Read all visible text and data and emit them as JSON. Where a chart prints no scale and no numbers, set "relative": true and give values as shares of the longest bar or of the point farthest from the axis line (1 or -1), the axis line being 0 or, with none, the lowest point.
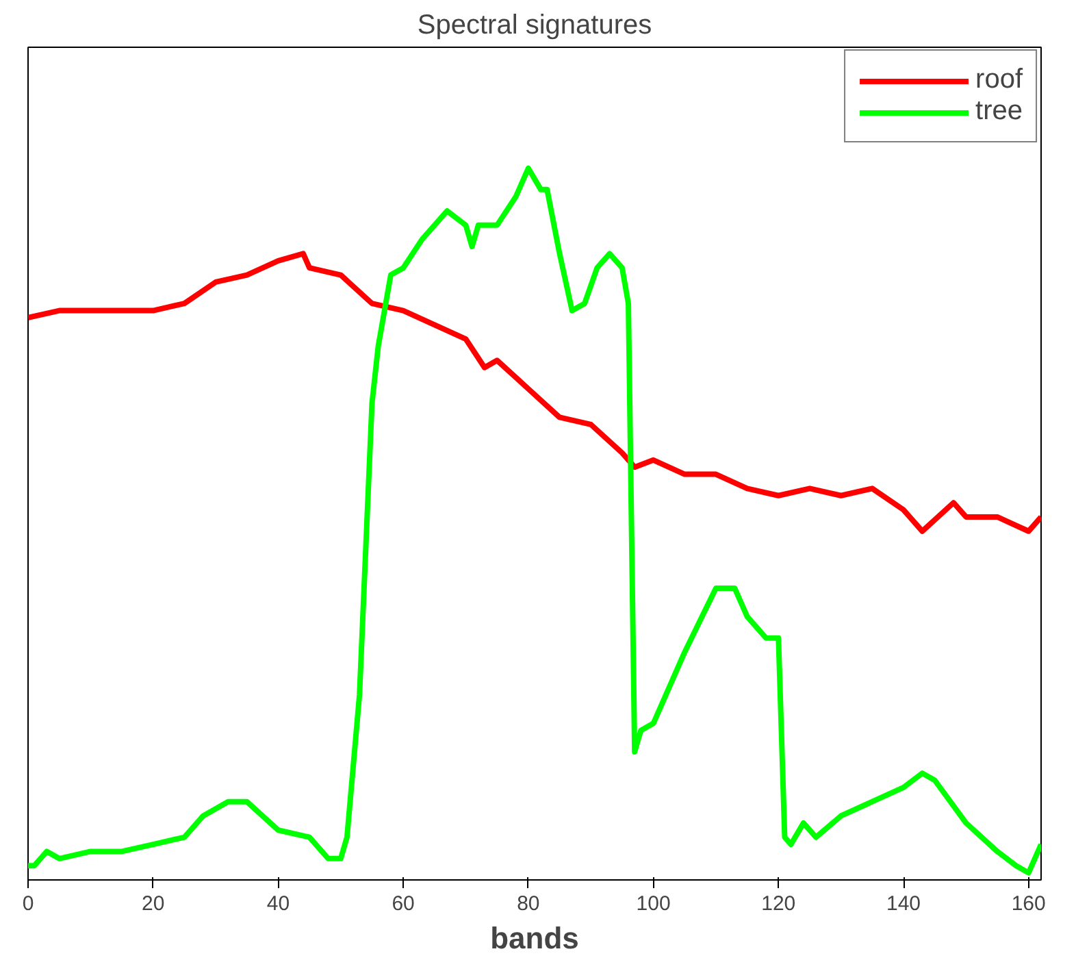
{
  "chart_data": {
    "type": "line",
    "title": "Spectral signatures",
    "xlabel": "bands",
    "relative": true,
    "xlim": [
      0,
      162
    ],
    "xticks": [
      0,
      20,
      40,
      60,
      80,
      100,
      120,
      140,
      160
    ],
    "legend": "top right",
    "grid": false,
    "series": [
      {
        "name": "roof",
        "color": "#ff0000",
        "x": [
          0,
          5,
          10,
          20,
          25,
          30,
          35,
          40,
          44,
          45,
          50,
          55,
          60,
          65,
          70,
          73,
          75,
          80,
          85,
          90,
          95,
          97,
          100,
          105,
          110,
          115,
          120,
          125,
          130,
          135,
          140,
          143,
          148,
          150,
          155,
          160,
          162
        ],
        "values": [
          0.79,
          0.8,
          0.8,
          0.8,
          0.81,
          0.84,
          0.85,
          0.87,
          0.88,
          0.86,
          0.85,
          0.81,
          0.8,
          0.78,
          0.76,
          0.72,
          0.73,
          0.69,
          0.65,
          0.64,
          0.6,
          0.58,
          0.59,
          0.57,
          0.57,
          0.55,
          0.54,
          0.55,
          0.54,
          0.55,
          0.52,
          0.49,
          0.53,
          0.51,
          0.51,
          0.49,
          0.51
        ]
      },
      {
        "name": "tree",
        "color": "#00ff00",
        "x": [
          0,
          1,
          3,
          5,
          10,
          15,
          20,
          25,
          28,
          32,
          35,
          40,
          45,
          48,
          50,
          51,
          53,
          55,
          56,
          58,
          60,
          63,
          65,
          67,
          70,
          71,
          72,
          75,
          78,
          80,
          82,
          83,
          85,
          87,
          89,
          91,
          93,
          95,
          96,
          97,
          98,
          100,
          105,
          110,
          113,
          115,
          118,
          120,
          121,
          122,
          124,
          126,
          130,
          135,
          140,
          143,
          145,
          150,
          155,
          158,
          160,
          162
        ],
        "values": [
          0.02,
          0.02,
          0.04,
          0.03,
          0.04,
          0.04,
          0.05,
          0.06,
          0.09,
          0.11,
          0.11,
          0.07,
          0.06,
          0.03,
          0.03,
          0.06,
          0.26,
          0.67,
          0.75,
          0.85,
          0.86,
          0.9,
          0.92,
          0.94,
          0.92,
          0.89,
          0.92,
          0.92,
          0.96,
          1.0,
          0.97,
          0.97,
          0.88,
          0.8,
          0.81,
          0.86,
          0.88,
          0.86,
          0.81,
          0.18,
          0.21,
          0.22,
          0.32,
          0.41,
          0.41,
          0.37,
          0.34,
          0.34,
          0.06,
          0.05,
          0.08,
          0.06,
          0.09,
          0.11,
          0.13,
          0.15,
          0.14,
          0.08,
          0.04,
          0.02,
          0.01,
          0.05
        ]
      }
    ]
  }
}
